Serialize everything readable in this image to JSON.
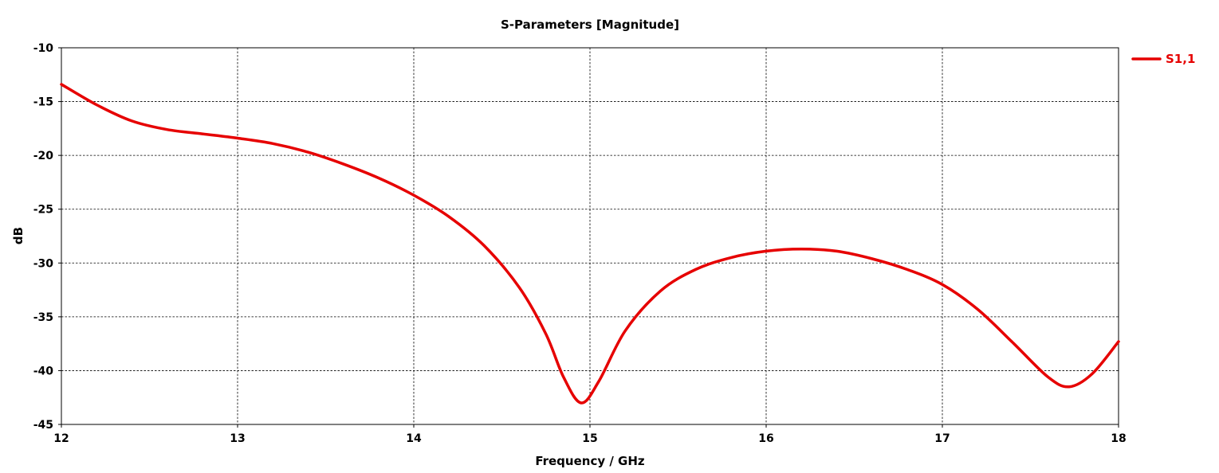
{
  "chart_data": {
    "type": "line",
    "title": "S-Parameters [Magnitude]",
    "xlabel": "Frequency / GHz",
    "ylabel": "dB",
    "xlim": [
      12,
      18
    ],
    "ylim": [
      -45,
      -10
    ],
    "x_ticks": [
      12,
      13,
      14,
      15,
      16,
      17,
      18
    ],
    "y_ticks": [
      -10,
      -15,
      -20,
      -25,
      -30,
      -35,
      -40,
      -45
    ],
    "grid": true,
    "legend_position": "top-right",
    "series": [
      {
        "name": "S1,1",
        "color": "#e60000",
        "x": [
          12.0,
          12.2,
          12.4,
          12.6,
          12.8,
          13.0,
          13.2,
          13.4,
          13.6,
          13.8,
          14.0,
          14.2,
          14.4,
          14.6,
          14.75,
          14.85,
          14.95,
          15.05,
          15.2,
          15.4,
          15.6,
          15.8,
          16.0,
          16.2,
          16.4,
          16.6,
          16.8,
          17.0,
          17.2,
          17.4,
          17.6,
          17.72,
          17.85,
          18.0
        ],
        "y": [
          -13.4,
          -15.3,
          -16.8,
          -17.6,
          -18.0,
          -18.4,
          -18.9,
          -19.7,
          -20.8,
          -22.1,
          -23.7,
          -25.7,
          -28.4,
          -32.3,
          -36.6,
          -40.6,
          -43.0,
          -41.0,
          -36.3,
          -32.6,
          -30.6,
          -29.5,
          -28.9,
          -28.7,
          -28.9,
          -29.6,
          -30.6,
          -32.0,
          -34.3,
          -37.4,
          -40.6,
          -41.5,
          -40.3,
          -37.3
        ]
      }
    ]
  }
}
